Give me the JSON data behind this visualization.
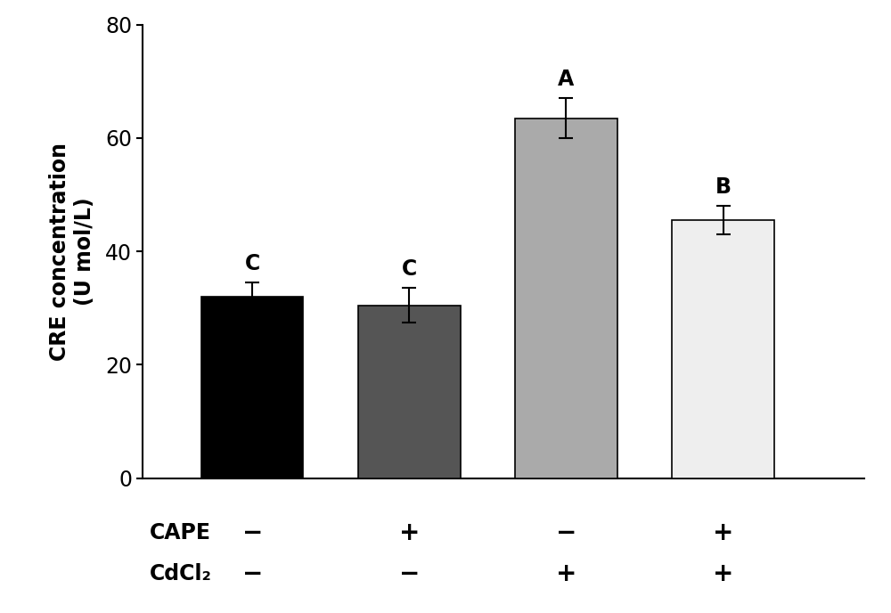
{
  "categories": [
    "1",
    "2",
    "3",
    "4"
  ],
  "values": [
    32.0,
    30.5,
    63.5,
    45.5
  ],
  "errors": [
    2.5,
    3.0,
    3.5,
    2.5
  ],
  "bar_colors": [
    "#000000",
    "#555555",
    "#aaaaaa",
    "#eeeeee"
  ],
  "bar_edgecolors": [
    "#000000",
    "#000000",
    "#000000",
    "#000000"
  ],
  "labels": [
    "C",
    "C",
    "A",
    "B"
  ],
  "ylabel_line1": "CRE concentration",
  "ylabel_line2": "(U mol/L)",
  "ylim": [
    0,
    80
  ],
  "yticks": [
    0,
    20,
    40,
    60,
    80
  ],
  "cape_labels": [
    "−",
    "+",
    "−",
    "+"
  ],
  "cdcl2_labels": [
    "−",
    "−",
    "+",
    "+"
  ],
  "cape_row_label": "CAPE",
  "cdcl2_row_label": "CdCl₂",
  "bar_width": 0.65,
  "x_positions": [
    1,
    2,
    3,
    4
  ],
  "xlim": [
    0.3,
    4.9
  ],
  "label_fontsize": 17,
  "tick_fontsize": 17,
  "annotation_fontsize": 17,
  "row_label_fontsize": 17,
  "sign_fontsize": 20,
  "errorbar_linewidth": 1.5,
  "errorbar_capsize": 6,
  "errorbar_capthick": 1.5,
  "spine_linewidth": 1.5
}
